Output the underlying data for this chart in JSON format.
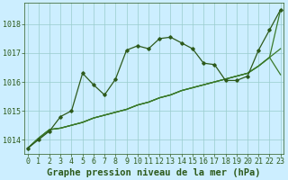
{
  "title": "Graphe pression niveau de la mer (hPa)",
  "hours": [
    0,
    1,
    2,
    3,
    4,
    5,
    6,
    7,
    8,
    9,
    10,
    11,
    12,
    13,
    14,
    15,
    16,
    17,
    18,
    19,
    20,
    21,
    22,
    23
  ],
  "series_main": [
    1013.7,
    1014.0,
    1014.3,
    1014.8,
    1015.0,
    1016.3,
    1015.9,
    1015.55,
    1016.1,
    1017.1,
    1017.25,
    1017.15,
    1017.5,
    1017.55,
    1017.35,
    1017.15,
    1016.65,
    1016.6,
    1016.05,
    1016.05,
    1016.2,
    1017.1,
    1017.8,
    1018.5
  ],
  "series_line1": [
    1013.7,
    1014.05,
    1014.35,
    1014.4,
    1014.5,
    1014.6,
    1014.75,
    1014.85,
    1014.95,
    1015.05,
    1015.2,
    1015.3,
    1015.45,
    1015.55,
    1015.7,
    1015.8,
    1015.9,
    1016.0,
    1016.1,
    1016.2,
    1016.3,
    1016.55,
    1016.85,
    1017.15
  ],
  "series_line2": [
    1013.7,
    1014.05,
    1014.35,
    1014.4,
    1014.5,
    1014.6,
    1014.75,
    1014.85,
    1014.95,
    1015.05,
    1015.2,
    1015.3,
    1015.45,
    1015.55,
    1015.7,
    1015.8,
    1015.9,
    1016.0,
    1016.1,
    1016.2,
    1016.3,
    1016.55,
    1016.85,
    1016.25
  ],
  "series_line3": [
    1013.7,
    1014.05,
    1014.35,
    1014.4,
    1014.5,
    1014.6,
    1014.75,
    1014.85,
    1014.95,
    1015.05,
    1015.2,
    1015.3,
    1015.45,
    1015.55,
    1015.7,
    1015.8,
    1015.9,
    1016.0,
    1016.1,
    1016.2,
    1016.3,
    1016.55,
    1016.85,
    1018.5
  ],
  "line_color": "#2d5a1b",
  "line_color2": "#3a7a2a",
  "bg_color": "#cceeff",
  "grid_color": "#99cccc",
  "ylim": [
    1013.5,
    1018.75
  ],
  "yticks": [
    1014,
    1015,
    1016,
    1017,
    1018
  ],
  "title_fontsize": 7.5,
  "tick_fontsize": 6
}
